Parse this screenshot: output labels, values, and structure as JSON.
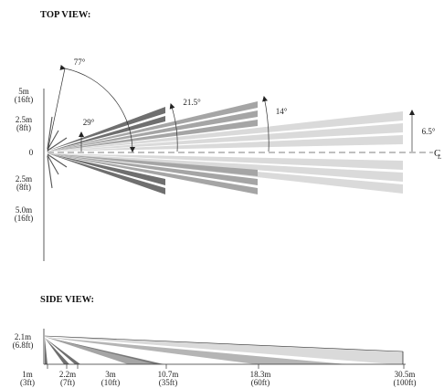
{
  "top_view": {
    "heading": "TOP VIEW:",
    "y_labels": [
      {
        "m": "5m",
        "ft": "(16ft)"
      },
      {
        "m": "2.5m",
        "ft": "(8ft)"
      },
      {
        "m": "0",
        "ft": ""
      },
      {
        "m": "2.5m",
        "ft": "(8ft)"
      },
      {
        "m": "5.0m",
        "ft": "(16ft)"
      }
    ],
    "angles": [
      "77°",
      "29°",
      "21.5°",
      "14°",
      "6.5°"
    ],
    "centerline": "C",
    "centerline_sub": "L"
  },
  "side_view": {
    "heading": "SIDE VIEW:",
    "height_label": {
      "m": "2.1m",
      "ft": "(6.8ft)"
    },
    "distances": [
      {
        "m": "1m",
        "ft": "(3ft)"
      },
      {
        "m": "2.2m",
        "ft": "(7ft)"
      },
      {
        "m": "3m",
        "ft": "(10ft)"
      },
      {
        "m": "10.7m",
        "ft": "(35ft)"
      },
      {
        "m": "18.3m",
        "ft": "(60ft)"
      },
      {
        "m": "30.5m",
        "ft": "(100ft)"
      }
    ]
  },
  "colors": {
    "beam_dark": "#6f6f6f",
    "beam_mid": "#a5a5a5",
    "beam_light": "#dadada",
    "line": "#333333"
  }
}
